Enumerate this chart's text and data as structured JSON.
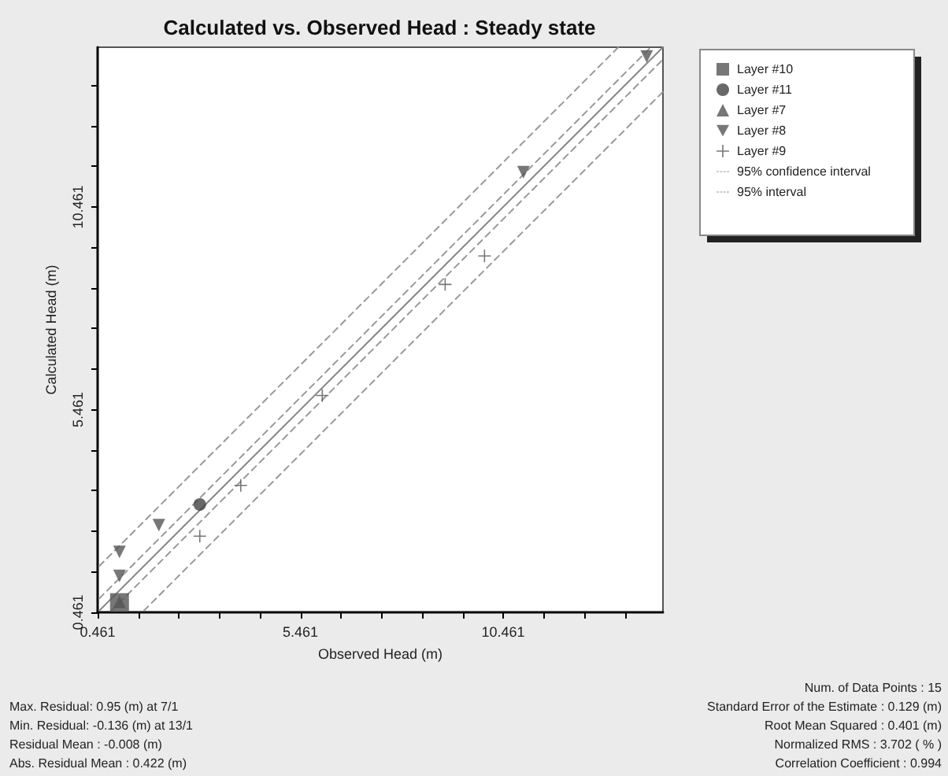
{
  "chart_data": {
    "type": "scatter",
    "title": "Calculated vs. Observed Head : Steady state",
    "xlabel": "Observed Head (m)",
    "ylabel": "Calculated Head (m)",
    "xlim": [
      0.461,
      14.4
    ],
    "ylim": [
      0.461,
      14.4
    ],
    "xticks": [
      0.461,
      {
        "value": 1.461,
        "label": null
      },
      {
        "value": 2.461,
        "label": null
      },
      {
        "value": 3.461,
        "label": null
      },
      {
        "value": 4.461,
        "label": null
      },
      5.461,
      {
        "value": 6.461,
        "label": null
      },
      {
        "value": 7.461,
        "label": null
      },
      {
        "value": 8.461,
        "label": null
      },
      {
        "value": 9.461,
        "label": null
      },
      10.461,
      {
        "value": 11.461,
        "label": null
      },
      {
        "value": 12.461,
        "label": null
      },
      {
        "value": 13.461,
        "label": null
      }
    ],
    "yticks": [
      0.461,
      {
        "value": 1.461,
        "label": null
      },
      {
        "value": 2.461,
        "label": null
      },
      {
        "value": 3.461,
        "label": null
      },
      {
        "value": 4.461,
        "label": null
      },
      5.461,
      {
        "value": 6.461,
        "label": null
      },
      {
        "value": 7.461,
        "label": null
      },
      {
        "value": 8.461,
        "label": null
      },
      {
        "value": 9.461,
        "label": null
      },
      10.461,
      {
        "value": 11.461,
        "label": null
      },
      {
        "value": 12.461,
        "label": null
      },
      {
        "value": 13.461,
        "label": null
      }
    ],
    "grid": false,
    "legend": "right",
    "series": [
      {
        "name": "Layer #10",
        "color": "#555555",
        "marker": "square",
        "x": [
          1.0
        ],
        "values": [
          0.7
        ]
      },
      {
        "name": "Layer #11",
        "color": "#444444",
        "marker": "circle",
        "x": [
          2.98
        ],
        "values": [
          3.12
        ]
      },
      {
        "name": "Layer #7",
        "color": "#555555",
        "marker": "triangle",
        "x": [
          1.0
        ],
        "values": [
          0.72
        ]
      },
      {
        "name": "Layer #8",
        "color": "#555555",
        "marker": "triangle-down",
        "x": [
          1.0,
          1.0,
          1.97,
          10.96,
          14.0
        ],
        "values": [
          1.36,
          1.95,
          2.61,
          11.32,
          14.17
        ]
      },
      {
        "name": "Layer #9",
        "color": "#555555",
        "marker": "cross",
        "x": [
          2.98,
          3.99,
          6.0,
          9.03,
          10.0
        ],
        "values": [
          2.34,
          3.59,
          5.81,
          8.55,
          9.25
        ]
      },
      {
        "type": "line",
        "color": "#888888",
        "line_style": "solid",
        "marker": "none",
        "x": [
          0.5,
          14.4
        ],
        "values": [
          0.5,
          14.4
        ]
      },
      {
        "type": "line",
        "name": "95% confidence interval",
        "color": "#999999",
        "line_style": "dashed",
        "marker": "none",
        "x": [
          0.5,
          14.1,
          null,
          0.8,
          14.4
        ],
        "values": [
          0.8,
          14.4,
          null,
          0.5,
          14.1
        ]
      },
      {
        "type": "line",
        "name": "95% interval",
        "color": "#999999",
        "line_style": "dashed",
        "marker": "none",
        "x": [
          0.5,
          13.3,
          null,
          1.6,
          14.4
        ],
        "values": [
          1.6,
          14.4,
          null,
          0.5,
          13.3
        ]
      }
    ],
    "annotations": [
      "Max. Residual: 0.95 (m) at 7/1",
      "Min. Residual: -0.136 (m) at 13/1",
      "Residual Mean : -0.008 (m)",
      "Abs. Residual Mean : 0.422 (m)",
      "Num. of Data Points : 15",
      "Standard Error of the Estimate : 0.129 (m)",
      "Root Mean Squared : 0.401 (m)",
      "Normalized RMS : 3.702 ( % )",
      "Correlation Coefficient : 0.994"
    ]
  }
}
